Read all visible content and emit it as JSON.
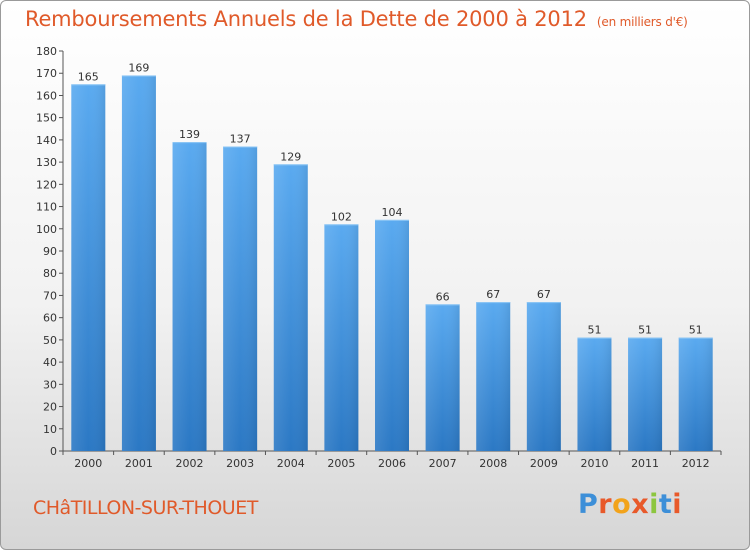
{
  "chart_data": {
    "type": "bar",
    "title": "Remboursements Annuels de la Dette de 2000 à 2012",
    "subtitle": "(en milliers d'€)",
    "categories": [
      "2000",
      "2001",
      "2002",
      "2003",
      "2004",
      "2005",
      "2006",
      "2007",
      "2008",
      "2009",
      "2010",
      "2011",
      "2012"
    ],
    "values": [
      165,
      169,
      139,
      137,
      129,
      102,
      104,
      66,
      67,
      67,
      51,
      51,
      51
    ],
    "ylim": [
      0,
      180
    ],
    "yticks": [
      0,
      10,
      20,
      30,
      40,
      50,
      60,
      70,
      80,
      90,
      100,
      110,
      120,
      130,
      140,
      150,
      160,
      170,
      180
    ],
    "grid": false,
    "bar_color": "#3d8fd8"
  },
  "footer": {
    "commune": "CHâTILLON-SUR-THOUET",
    "logo": {
      "text": "Proxiti",
      "letter_colors": [
        "#3d8fd8",
        "#e8592a",
        "#f2a31b",
        "#e8592a",
        "#8cc63f",
        "#3d8fd8",
        "#e8592a"
      ]
    }
  }
}
